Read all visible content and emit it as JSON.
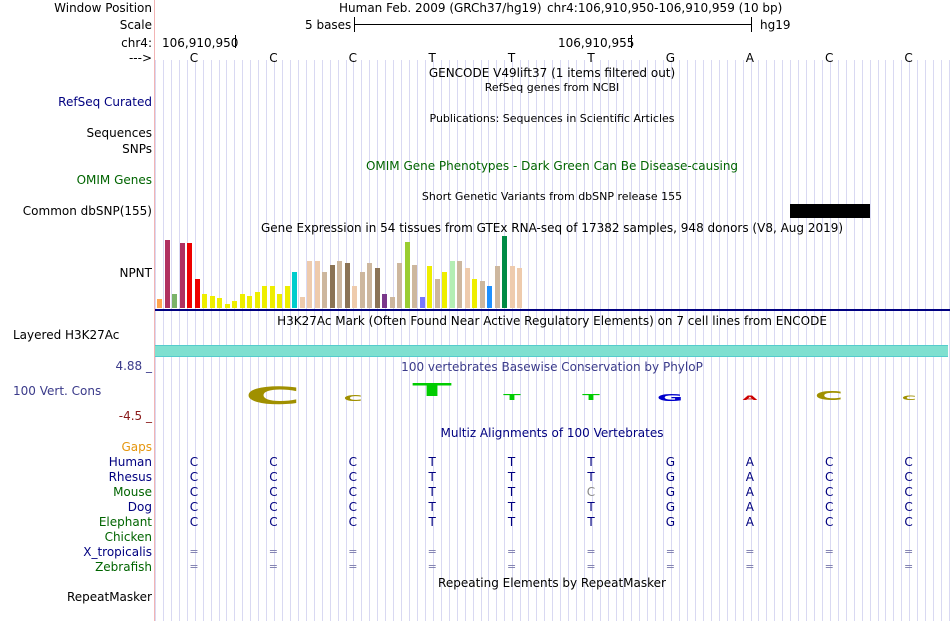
{
  "header": {
    "window_position_label": "Window Position",
    "scale_label": "Scale",
    "chrom_label": "chr4:",
    "strand_label": "--->",
    "assembly_text": "Human Feb. 2009 (GRCh37/hg19)",
    "position_text": "chr4:106,910,950-106,910,959 (10 bp)",
    "scale_text": "5 bases",
    "db_text": "hg19",
    "coord_left": "106,910,950",
    "coord_right": "106,910,955"
  },
  "bases": [
    "C",
    "C",
    "C",
    "T",
    "T",
    "T",
    "G",
    "A",
    "C",
    "C"
  ],
  "tracks": {
    "gencode_title": "GENCODE V49lift37 (1 items filtered out)",
    "refseq_title": "RefSeq genes from NCBI",
    "refseq_label": "RefSeq Curated",
    "pubs_title": "Publications: Sequences in Scientific Articles",
    "sequences_label": "Sequences",
    "snps_label": "SNPs",
    "omim_title": "OMIM Gene Phenotypes - Dark Green Can Be Disease-causing",
    "omim_label": "OMIM Genes",
    "dbsnp_title": "Short Genetic Variants from dbSNP release 155",
    "dbsnp_label": "Common dbSNP(155)",
    "gtex_title": "Gene Expression in 54 tissues from GTEx RNA-seq of 17382 samples, 948 donors (V8, Aug 2019)",
    "gtex_label": "NPNT",
    "h3k27_title": "H3K27Ac Mark (Often Found Near Active Regulatory Elements) on 7 cell lines from ENCODE",
    "h3k27_label": "Layered H3K27Ac",
    "cons_title": "100 vertebrates Basewise Conservation by PhyloP",
    "cons_label": "100 Vert. Cons",
    "cons_max": "4.88 _",
    "cons_min": "-4.5 _",
    "multiz_title": "Multiz Alignments of 100 Vertebrates",
    "gaps_label": "Gaps",
    "repeat_title": "Repeating Elements by RepeatMasker",
    "repeat_label": "RepeatMasker"
  },
  "gtex_bar_colors": [
    "#ffa54f",
    "#b03060",
    "#7ab36a",
    "#b03060",
    "#ee0000",
    "#ee0000",
    "#eeee00",
    "#eeee00",
    "#eeee00",
    "#eeee00",
    "#eeee00",
    "#eeee00",
    "#eeee00",
    "#eeee00",
    "#eeee00",
    "#eeee00",
    "#eeee00",
    "#eeee00",
    "#00cdcd",
    "#eecbad",
    "#eecbad",
    "#eecbad",
    "#cdb79e",
    "#8b7355",
    "#cdb79e",
    "#8b7355",
    "#eecbad",
    "#cdb79e",
    "#cdb79e",
    "#8b7355",
    "#7a378b",
    "#cdb79e",
    "#cdb79e",
    "#9acd32",
    "#cdb79e",
    "#7777ff",
    "#eeee00",
    "#cdb79e",
    "#eeee00",
    "#b4eeb4",
    "#cdb79e",
    "#eecbad",
    "#eeee00",
    "#cdb79e",
    "#1e90ff",
    "#cdb79e",
    "#008b45",
    "#eecbad",
    "#eecbad"
  ],
  "gtex_bar_values": [
    0.12,
    0.95,
    0.2,
    0.9,
    0.9,
    0.4,
    0.2,
    0.17,
    0.14,
    0.06,
    0.1,
    0.2,
    0.17,
    0.22,
    0.3,
    0.3,
    0.2,
    0.3,
    0.5,
    0.15,
    0.65,
    0.65,
    0.5,
    0.6,
    0.65,
    0.62,
    0.3,
    0.5,
    0.62,
    0.55,
    0.2,
    0.15,
    0.62,
    0.92,
    0.6,
    0.15,
    0.58,
    0.4,
    0.5,
    0.65,
    0.65,
    0.55,
    0.4,
    0.38,
    0.3,
    0.58,
    1.0,
    0.58,
    0.55
  ],
  "conservation_logo": [
    "C",
    "C",
    "T",
    "T",
    "T",
    "G",
    "A",
    "C",
    "C"
  ],
  "conservation_colors": [
    "#a09000",
    "#a09000",
    "#00cc00",
    "#00cc00",
    "#00cc00",
    "#0000cc",
    "#cc0000",
    "#a09000",
    "#a09000"
  ],
  "multiz": [
    {
      "species": "Human",
      "color": "#000080",
      "seq": [
        "C",
        "C",
        "C",
        "T",
        "T",
        "T",
        "G",
        "A",
        "C",
        "C"
      ]
    },
    {
      "species": "Rhesus",
      "color": "#000080",
      "seq": [
        "C",
        "C",
        "C",
        "T",
        "T",
        "T",
        "G",
        "A",
        "C",
        "C"
      ]
    },
    {
      "species": "Mouse",
      "color": "#006400",
      "seq": [
        "C",
        "C",
        "C",
        "T",
        "T",
        "C",
        "G",
        "A",
        "C",
        "C"
      ]
    },
    {
      "species": "Dog",
      "color": "#000080",
      "seq": [
        "C",
        "C",
        "C",
        "T",
        "T",
        "T",
        "G",
        "A",
        "C",
        "C"
      ]
    },
    {
      "species": "Elephant",
      "color": "#006400",
      "seq": [
        "C",
        "C",
        "C",
        "T",
        "T",
        "T",
        "G",
        "A",
        "C",
        "C"
      ]
    },
    {
      "species": "Chicken",
      "color": "#006400",
      "seq": []
    },
    {
      "species": "X_tropicalis",
      "color": "#000080",
      "seq": [
        "=",
        "=",
        "=",
        "=",
        "=",
        "=",
        "=",
        "=",
        "=",
        "="
      ]
    },
    {
      "species": "Zebrafish",
      "color": "#006400",
      "seq": [
        "=",
        "=",
        "=",
        "=",
        "=",
        "=",
        "=",
        "=",
        "=",
        "="
      ]
    }
  ],
  "colors": {
    "label_navy": "#000080",
    "label_green": "#006400",
    "gaps_orange": "#e5960e",
    "cons_blue": "#3a3a8a",
    "cons_max": "#1a1a8a",
    "cons_min": "#8a1a1a",
    "h3k27_teal": "#7fe0d0",
    "omim_green": "#006400"
  }
}
